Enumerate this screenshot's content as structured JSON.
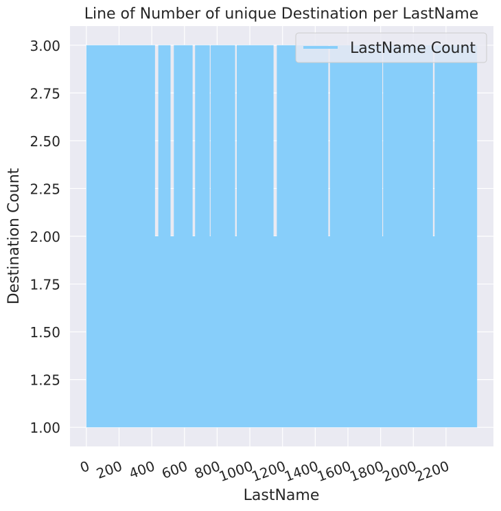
{
  "chart_data": {
    "type": "line",
    "title": "Line of Number of unique Destination per LastName",
    "xlabel": "LastName",
    "ylabel": "Destination Count",
    "xlim": [
      -100,
      2490
    ],
    "ylim": [
      0.9,
      3.1
    ],
    "x_ticks": [
      0,
      200,
      400,
      600,
      800,
      1000,
      1200,
      1400,
      1600,
      1800,
      2000,
      2200
    ],
    "x_tick_labels": [
      "0",
      "200",
      "400",
      "600",
      "800",
      "1000",
      "1200",
      "1400",
      "1600",
      "1800",
      "2000",
      "2200"
    ],
    "y_ticks": [
      1.0,
      1.25,
      1.5,
      1.75,
      2.0,
      2.25,
      2.5,
      2.75,
      3.0
    ],
    "y_tick_labels": [
      "1.00",
      "1.25",
      "1.50",
      "1.75",
      "2.00",
      "2.25",
      "2.50",
      "2.75",
      "3.00"
    ],
    "grid": true,
    "legend_position": "top-right",
    "background_color": "#eaeaf2",
    "series": [
      {
        "name": "LastName Count",
        "color": "#87cefa",
        "x_range": [
          0,
          2390
        ],
        "value_levels": [
          1,
          2,
          3
        ],
        "min_value": 1,
        "max_value": 3,
        "segments_reaching_3": [
          [
            0,
            420
          ],
          [
            440,
            515
          ],
          [
            535,
            650
          ],
          [
            665,
            755
          ],
          [
            760,
            910
          ],
          [
            920,
            1145
          ],
          [
            1165,
            1480
          ],
          [
            1490,
            1810
          ],
          [
            1815,
            2120
          ],
          [
            2130,
            2390
          ]
        ]
      }
    ]
  }
}
